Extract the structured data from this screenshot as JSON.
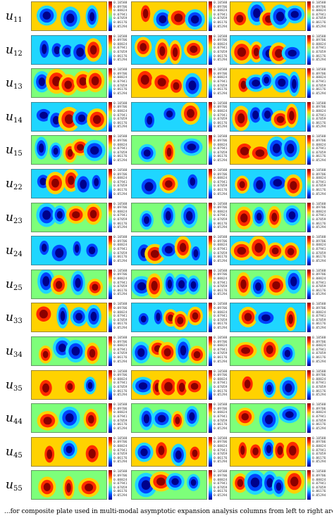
{
  "figure": {
    "rows": [
      {
        "label": "u",
        "sub": "11"
      },
      {
        "label": "u",
        "sub": "12"
      },
      {
        "label": "u",
        "sub": "13"
      },
      {
        "label": "u",
        "sub": "14"
      },
      {
        "label": "u",
        "sub": "15"
      },
      {
        "label": "u",
        "sub": "22"
      },
      {
        "label": "u",
        "sub": "23"
      },
      {
        "label": "u",
        "sub": "24"
      },
      {
        "label": "u",
        "sub": "25"
      },
      {
        "label": "u",
        "sub": "33"
      },
      {
        "label": "u",
        "sub": "34"
      },
      {
        "label": "u",
        "sub": "35"
      },
      {
        "label": "u",
        "sub": "44"
      },
      {
        "label": "u",
        "sub": "45"
      },
      {
        "label": "u",
        "sub": "55"
      }
    ],
    "colormap": [
      "#00008b",
      "#0044ff",
      "#1fd6ff",
      "#7dff7a",
      "#ffd200",
      "#ff2a00",
      "#8b0000"
    ],
    "colorbar_ticks": [
      "0.10588",
      "0.09706",
      "0.08824",
      "0.07941",
      "0.07059",
      "0.06176",
      "0.05294"
    ],
    "caption": "...for composite plate used in multi-modal asymptotic expansion analysis columns from left to right are u, u, (d..."
  }
}
